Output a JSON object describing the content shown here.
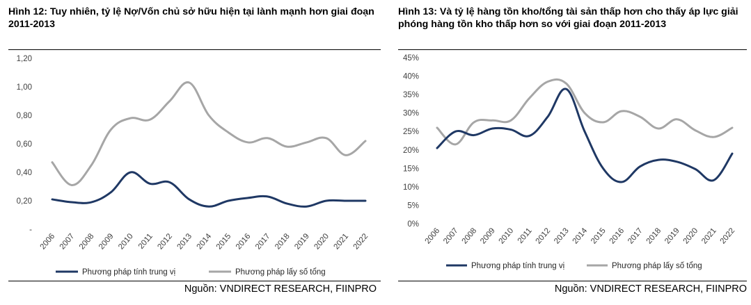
{
  "left": {
    "title": "Hình 12: Tuy nhiên, tỷ lệ Nợ/Vốn chủ sở hữu hiện tại lành mạnh hơn giai đoạn 2011-2013",
    "source": "Nguồn: VNDIRECT RESEARCH, FIINPRO"
  },
  "right": {
    "title": "Hình 13: Và tỷ lệ hàng tồn kho/tổng tài sản thấp hơn cho thấy áp lực giải phóng hàng tồn kho thấp hơn so với giai đoạn 2011-2013",
    "source": "Nguồn: VNDIRECT RESEARCH, FIINPRO"
  },
  "chart_data": [
    {
      "type": "line",
      "x": [
        "2006",
        "2007",
        "2008",
        "2009",
        "2010",
        "2011",
        "2012",
        "2013",
        "2014",
        "2015",
        "2016",
        "2017",
        "2018",
        "2019",
        "2020",
        "2021",
        "2022"
      ],
      "yticks": [
        "-",
        "0,20",
        "0,40",
        "0,60",
        "0,80",
        "1,00",
        "1,20"
      ],
      "ylim": [
        0,
        1.2
      ],
      "grid": false,
      "legend": "bottom",
      "colors": {
        "series1": "#1f3864",
        "series2": "#a6a6a6"
      },
      "series": [
        {
          "name": "Phương pháp tính trung vị",
          "values": [
            0.21,
            0.19,
            0.19,
            0.26,
            0.4,
            0.32,
            0.33,
            0.21,
            0.16,
            0.2,
            0.22,
            0.23,
            0.18,
            0.16,
            0.2,
            0.2,
            0.2
          ]
        },
        {
          "name": "Phương pháp lấy số tổng",
          "values": [
            0.47,
            0.31,
            0.45,
            0.7,
            0.78,
            0.77,
            0.9,
            1.03,
            0.8,
            0.68,
            0.61,
            0.64,
            0.58,
            0.61,
            0.64,
            0.52,
            0.62
          ]
        }
      ]
    },
    {
      "type": "line",
      "x": [
        "2006",
        "2007",
        "2008",
        "2009",
        "2010",
        "2011",
        "2012",
        "2013",
        "2014",
        "2015",
        "2016",
        "2017",
        "2018",
        "2019",
        "2020",
        "2021",
        "2022"
      ],
      "yticks": [
        "0%",
        "5%",
        "10%",
        "15%",
        "20%",
        "25%",
        "30%",
        "35%",
        "40%",
        "45%"
      ],
      "ylim": [
        0,
        45
      ],
      "grid": false,
      "legend": "bottom",
      "colors": {
        "series1": "#1f3864",
        "series2": "#a6a6a6"
      },
      "series": [
        {
          "name": "Phương pháp tính trung vị",
          "values": [
            20.5,
            25.0,
            24.0,
            25.8,
            25.5,
            23.8,
            29.0,
            36.5,
            25.0,
            15.0,
            11.3,
            15.5,
            17.3,
            16.8,
            14.8,
            11.8,
            19.0
          ]
        },
        {
          "name": "Phương pháp lấy số tổng",
          "values": [
            26.0,
            21.5,
            27.5,
            28.0,
            28.0,
            34.0,
            38.5,
            38.0,
            30.0,
            27.5,
            30.5,
            29.0,
            25.8,
            28.3,
            25.3,
            23.5,
            26.0
          ]
        }
      ]
    }
  ]
}
